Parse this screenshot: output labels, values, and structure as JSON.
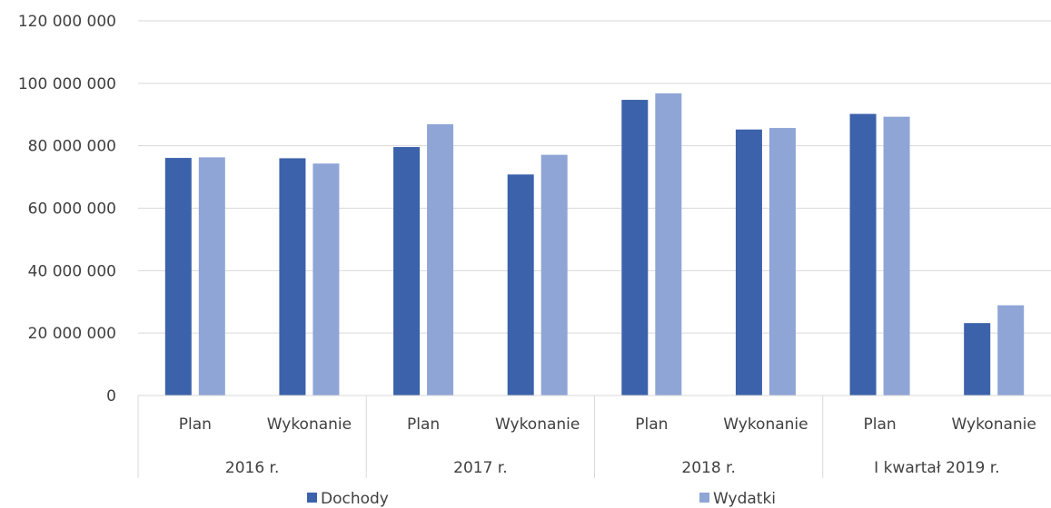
{
  "chart_data": {
    "type": "bar",
    "categories": [
      "Plan",
      "Wykonanie",
      "Plan",
      "Wykonanie",
      "Plan",
      "Wykonanie",
      "Plan",
      "Wykonanie"
    ],
    "groups": [
      {
        "label": "2016 r.",
        "span": 2
      },
      {
        "label": "2017 r.",
        "span": 2
      },
      {
        "label": "2018 r.",
        "span": 2
      },
      {
        "label": "I kwartał 2019 r.",
        "span": 2
      }
    ],
    "series": [
      {
        "name": "Dochody",
        "color": "#3B62AA",
        "values": [
          76100000,
          76000000,
          79600000,
          70800000,
          94700000,
          85200000,
          90200000,
          23200000
        ]
      },
      {
        "name": "Wydatki",
        "color": "#8FA5D6",
        "values": [
          76300000,
          74300000,
          86900000,
          77100000,
          96800000,
          85700000,
          89300000,
          28900000
        ]
      }
    ],
    "yticks": [
      "0",
      "20 000 000",
      "40 000 000",
      "60 000 000",
      "80 000 000",
      "100 000 000",
      "120 000 000"
    ],
    "ylim": [
      0,
      120000000
    ],
    "grid": true,
    "legend_position": "bottom"
  }
}
